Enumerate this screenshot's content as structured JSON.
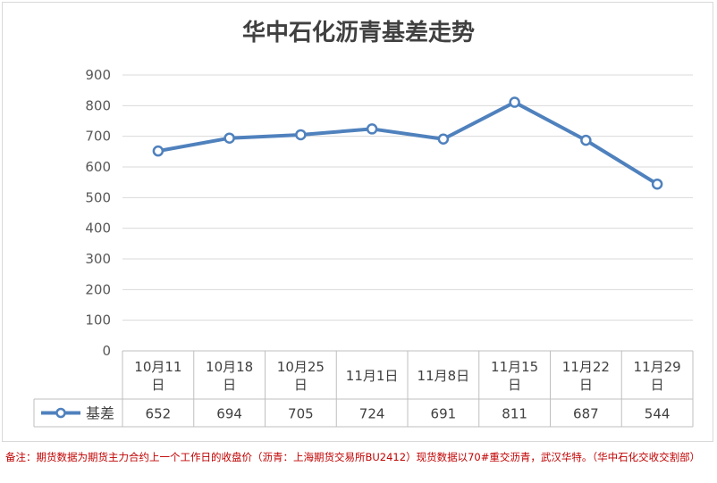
{
  "chart_data": {
    "type": "line",
    "title": "华中石化沥青基差走势",
    "categories": [
      [
        "10月11",
        "日"
      ],
      [
        "10月18",
        "日"
      ],
      [
        "10月25",
        "日"
      ],
      [
        "11月1日"
      ],
      [
        "11月8日"
      ],
      [
        "11月15",
        "日"
      ],
      [
        "11月22",
        "日"
      ],
      [
        "11月29",
        "日"
      ]
    ],
    "series": [
      {
        "name": "基差",
        "values": [
          652,
          694,
          705,
          724,
          691,
          811,
          687,
          544
        ],
        "color": "#4f81bd"
      }
    ],
    "yticks": [
      "900",
      "800",
      "700",
      "600",
      "500",
      "400",
      "300",
      "200",
      "100",
      "0"
    ],
    "ylim": [
      0,
      900
    ],
    "grid": true,
    "legend": "data-table-left",
    "data_table": true
  },
  "footnote": "备注：期货数据为期货主力合约上一个工作日的收盘价（沥青：上海期货交易所BU2412）现货数据以70#重交沥青，武汉华特。（华中石化交收交割部）"
}
